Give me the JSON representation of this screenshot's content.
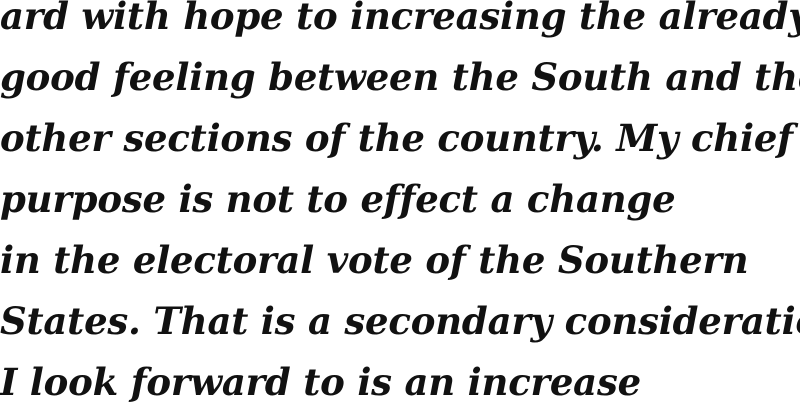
{
  "document": {
    "lines": [
      "ard with hope to increasing the already",
      "good feeling between the South and the",
      "other sections of the country. My chief",
      "purpose is not to effect a change",
      "in the electoral vote of the Southern",
      "States. That is a secondary consideration",
      "I look forward to is an increase"
    ]
  }
}
